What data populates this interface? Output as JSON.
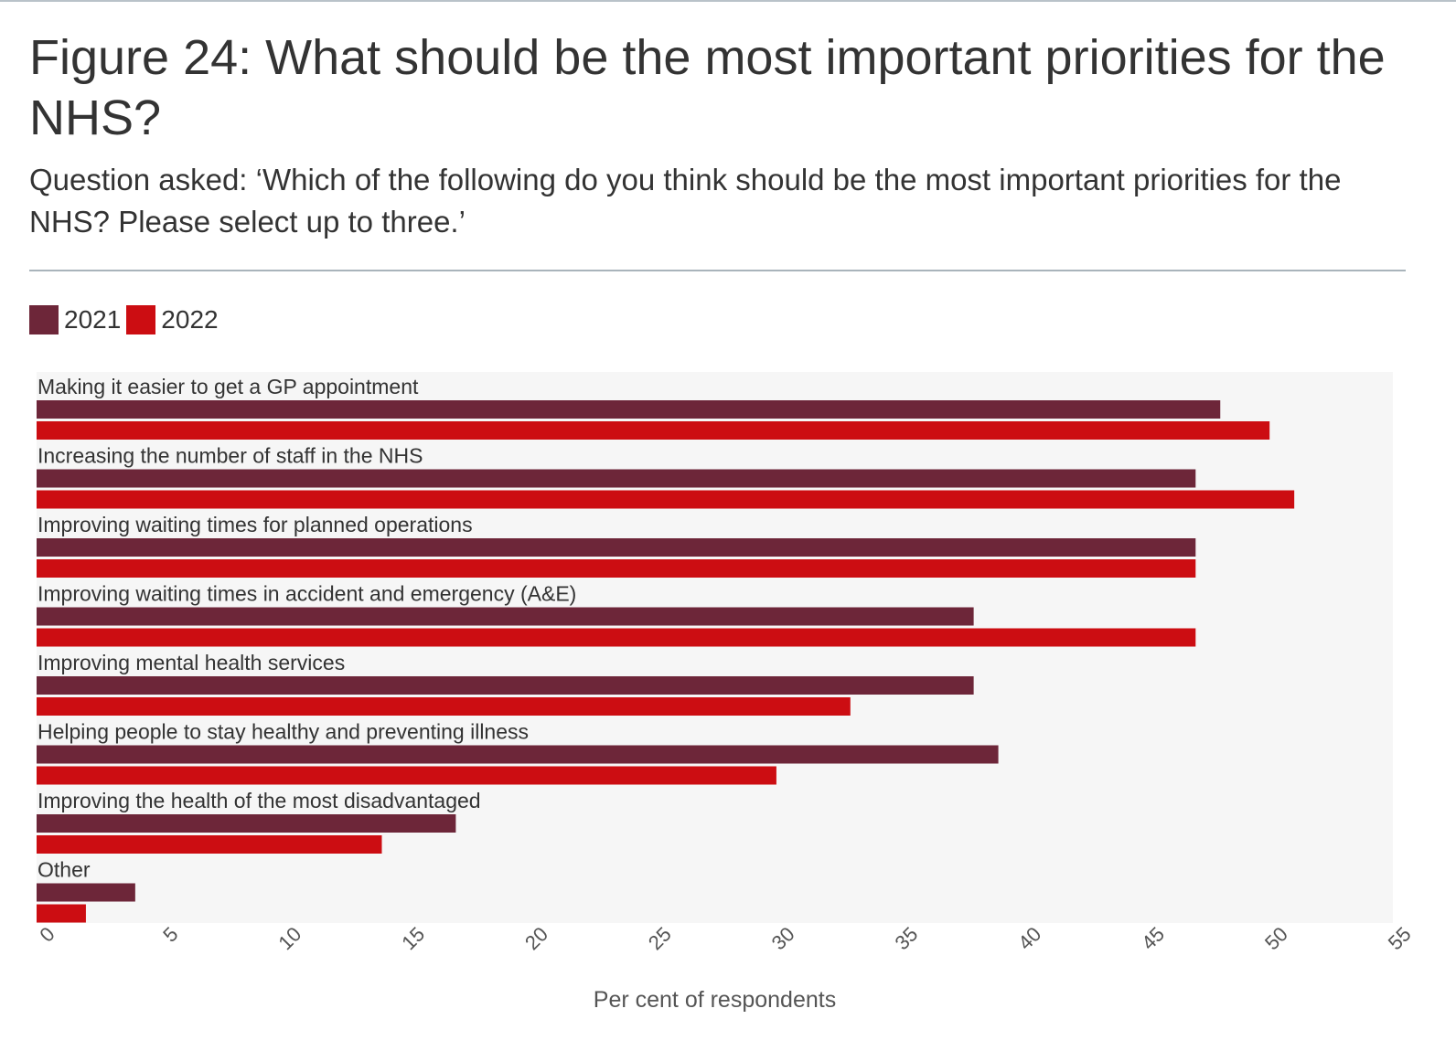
{
  "header": {
    "title": "Figure 24: What should be the most important priorities for the NHS?",
    "subtitle": "Question asked: ‘Which of the following do you think should be the most important priorities for the NHS? Please select up to three.’"
  },
  "colors": {
    "series_2021": "#6d2639",
    "series_2022": "#cc0d12",
    "plot_background": "#f6f6f6",
    "divider": "#a9b4bb"
  },
  "chart_data": {
    "type": "bar",
    "orientation": "horizontal",
    "title": "Figure 24: What should be the most important priorities for the NHS?",
    "subtitle": "Question asked: ‘Which of the following do you think should be the most important priorities for the NHS? Please select up to three.’",
    "xlabel": "Per cent of respondents",
    "ylabel": "",
    "xlim": [
      0,
      55
    ],
    "xticks": [
      "0",
      "5",
      "10",
      "15",
      "20",
      "25",
      "30",
      "35",
      "40",
      "45",
      "50",
      "55"
    ],
    "grid": false,
    "legend_position": "top-left",
    "categories": [
      "Making it easier to get a GP appointment",
      "Increasing the number of staff in the NHS",
      "Improving waiting times for planned operations",
      "Improving waiting times in accident and emergency (A&E)",
      "Improving mental health services",
      "Helping people to stay healthy and preventing illness",
      "Improving the health of the most disadvantaged",
      "Other"
    ],
    "series": [
      {
        "name": "2021",
        "color": "#6d2639",
        "values": [
          48,
          47,
          47,
          38,
          38,
          39,
          17,
          4
        ]
      },
      {
        "name": "2022",
        "color": "#cc0d12",
        "values": [
          50,
          51,
          47,
          47,
          33,
          30,
          14,
          2
        ]
      }
    ]
  }
}
